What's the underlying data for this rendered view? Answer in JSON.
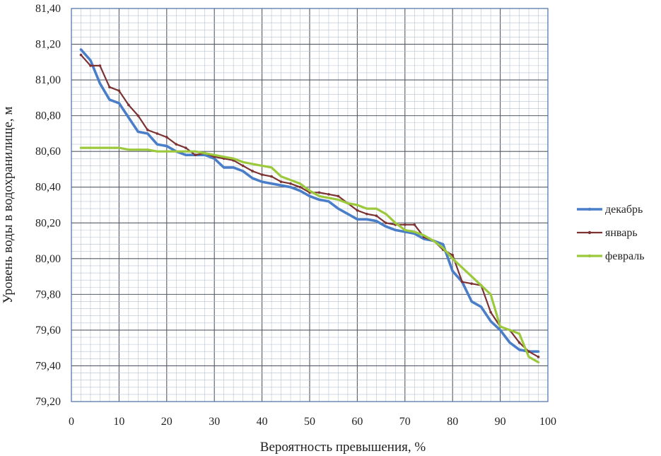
{
  "chart_data": {
    "type": "line",
    "title": "",
    "xlabel": "Вероятность превышения, %",
    "ylabel": "Уровень воды в водохранилище, м",
    "xlim": [
      0,
      100
    ],
    "ylim": [
      79.2,
      81.4
    ],
    "x_ticks": [
      "0",
      "10",
      "20",
      "30",
      "40",
      "50",
      "60",
      "70",
      "80",
      "90",
      "100"
    ],
    "y_ticks": [
      "79,20",
      "79,40",
      "79,60",
      "79,80",
      "80,00",
      "80,20",
      "80,40",
      "80,60",
      "80,80",
      "81,00",
      "81,20",
      "81,40"
    ],
    "grid": true,
    "legend_position": "right",
    "series": [
      {
        "name": "декабрь",
        "color": "#4a7ec8",
        "x": [
          2,
          4,
          6,
          8,
          10,
          12,
          14,
          16,
          18,
          20,
          22,
          24,
          26,
          28,
          30,
          32,
          34,
          36,
          38,
          40,
          42,
          44,
          46,
          48,
          50,
          52,
          54,
          56,
          58,
          60,
          62,
          64,
          66,
          68,
          70,
          72,
          74,
          76,
          78,
          80,
          82,
          84,
          86,
          88,
          90,
          92,
          94,
          96,
          98
        ],
        "y": [
          81.17,
          81.11,
          80.98,
          80.89,
          80.87,
          80.79,
          80.71,
          80.7,
          80.64,
          80.63,
          80.6,
          80.58,
          80.58,
          80.58,
          80.56,
          80.51,
          80.51,
          80.49,
          80.45,
          80.43,
          80.42,
          80.41,
          80.4,
          80.38,
          80.35,
          80.33,
          80.32,
          80.28,
          80.25,
          80.22,
          80.22,
          80.21,
          80.18,
          80.16,
          80.15,
          80.14,
          80.11,
          80.1,
          80.08,
          79.93,
          79.87,
          79.76,
          79.73,
          79.65,
          79.6,
          79.53,
          79.49,
          79.48,
          79.48
        ]
      },
      {
        "name": "январь",
        "color": "#7d3232",
        "x": [
          2,
          4,
          6,
          8,
          10,
          12,
          14,
          16,
          18,
          20,
          22,
          24,
          26,
          28,
          30,
          32,
          34,
          36,
          38,
          40,
          42,
          44,
          46,
          48,
          50,
          52,
          54,
          56,
          58,
          60,
          62,
          64,
          66,
          68,
          70,
          72,
          74,
          76,
          78,
          80,
          82,
          84,
          86,
          88,
          90,
          92,
          94,
          96,
          98
        ],
        "y": [
          81.14,
          81.08,
          81.08,
          80.96,
          80.94,
          80.86,
          80.8,
          80.72,
          80.7,
          80.68,
          80.64,
          80.62,
          80.58,
          80.59,
          80.57,
          80.56,
          80.55,
          80.52,
          80.49,
          80.47,
          80.46,
          80.43,
          80.42,
          80.4,
          80.37,
          80.37,
          80.36,
          80.35,
          80.31,
          80.27,
          80.25,
          80.24,
          80.2,
          80.19,
          80.19,
          80.19,
          80.12,
          80.1,
          80.05,
          80.02,
          79.87,
          79.86,
          79.85,
          79.7,
          79.62,
          79.6,
          79.53,
          79.48,
          79.45
        ]
      },
      {
        "name": "февраль",
        "color": "#9cc93c",
        "x": [
          2,
          4,
          6,
          8,
          10,
          12,
          14,
          16,
          18,
          20,
          22,
          24,
          26,
          28,
          30,
          32,
          34,
          36,
          38,
          40,
          42,
          44,
          46,
          48,
          50,
          52,
          54,
          56,
          58,
          60,
          62,
          64,
          66,
          68,
          70,
          72,
          74,
          76,
          78,
          80,
          82,
          84,
          86,
          88,
          90,
          92,
          94,
          96,
          98
        ],
        "y": [
          80.62,
          80.62,
          80.62,
          80.62,
          80.62,
          80.61,
          80.61,
          80.61,
          80.6,
          80.6,
          80.6,
          80.6,
          80.6,
          80.59,
          80.58,
          80.57,
          80.56,
          80.54,
          80.53,
          80.52,
          80.51,
          80.46,
          80.44,
          80.42,
          80.38,
          80.35,
          80.34,
          80.33,
          80.31,
          80.3,
          80.28,
          80.28,
          80.25,
          80.2,
          80.16,
          80.15,
          80.13,
          80.1,
          80.06,
          80.0,
          79.95,
          79.9,
          79.85,
          79.8,
          79.62,
          79.6,
          79.58,
          79.45,
          79.42
        ]
      }
    ]
  }
}
